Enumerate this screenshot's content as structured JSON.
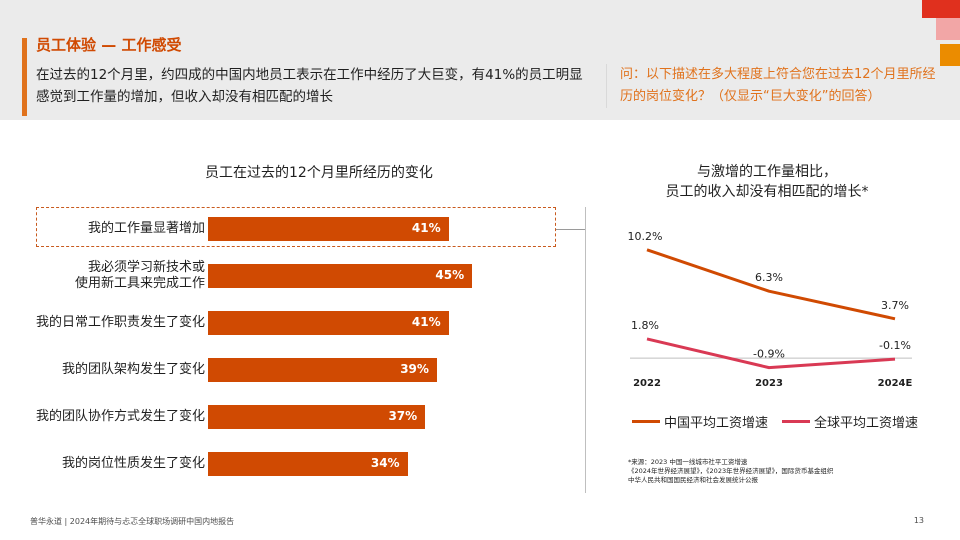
{
  "header": {
    "section_title": "员工体验 — 工作感受",
    "lead_text": "在过去的12个月里，约四成的中国内地员工表示在工作中经历了大巨变，有41%的员工明显感觉到工作量的增加，但收入却没有相匹配的增长",
    "question_text": "问：以下描述在多大程度上符合您在过去12个月里所经历的岗位变化？（仅显示“巨大变化”的回答）"
  },
  "colors": {
    "accent": "#d04a02",
    "accent_light": "#e0721c",
    "series_china": "#d04a02",
    "series_global": "#d93954",
    "logo_red": "#e0301e",
    "logo_pink": "#f2a6a6",
    "logo_orange": "#eb8c00"
  },
  "footer": {
    "left": "普华永道 | 2024年期待与忐忑全球职场调研中国内地报告",
    "page_number": "13"
  },
  "chart_data": [
    {
      "type": "bar",
      "orientation": "horizontal",
      "title": "员工在过去的12个月里所经历的变化",
      "categories": [
        "我的工作量显著增加",
        "我必须学习新技术或使用新工具来完成工作",
        "我的日常工作职责发生了变化",
        "我的团队架构发生了变化",
        "我的团队协作方式发生了变化",
        "我的岗位性质发生了变化"
      ],
      "category_lines": [
        [
          "我的工作量显著增加"
        ],
        [
          "我必须学习新技术或",
          "使用新工具来完成工作"
        ],
        [
          "我的日常工作职责发生了变化"
        ],
        [
          "我的团队架构发生了变化"
        ],
        [
          "我的团队协作方式发生了变化"
        ],
        [
          "我的岗位性质发生了变化"
        ]
      ],
      "values": [
        41,
        45,
        41,
        39,
        37,
        34
      ],
      "value_labels": [
        "41%",
        "45%",
        "41%",
        "39%",
        "37%",
        "34%"
      ],
      "highlighted": "我的工作量显著增加",
      "xlim": [
        0,
        100
      ]
    },
    {
      "type": "line",
      "title": "与激增的工作量相比，\n员工的收入却没有相匹配的增长*",
      "x": [
        "2022",
        "2023",
        "2024E"
      ],
      "series": [
        {
          "name": "中国平均工资增速",
          "values": [
            10.2,
            6.3,
            3.7
          ],
          "labels": [
            "10.2%",
            "6.3%",
            "3.7%"
          ]
        },
        {
          "name": "全球平均工资增速",
          "values": [
            1.8,
            -0.9,
            -0.1
          ],
          "labels": [
            "1.8%",
            "-0.9%",
            "-0.1%"
          ]
        }
      ],
      "ylim": [
        -1.5,
        11.5
      ],
      "source_note": "*来源：2023 中国一线城市社平工资增速\n《2024年世界经济展望》，《2023年世界经济展望》，国际货币基金组织\n中华人民共和国国民经济和社会发展统计公报"
    }
  ]
}
